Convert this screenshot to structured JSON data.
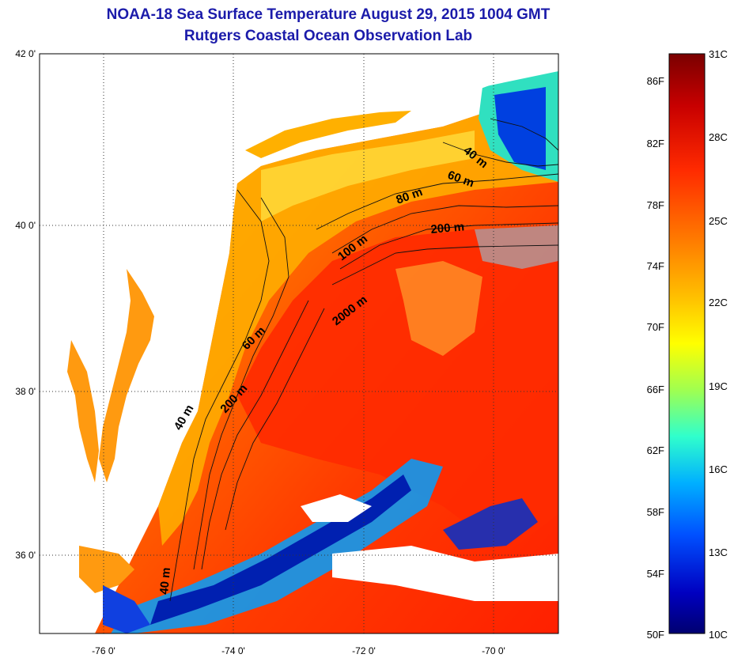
{
  "title": "NOAA-18 Sea Surface Temperature August 29, 2015 1004 GMT",
  "subtitle": "Rutgers Coastal Ocean Observation Lab",
  "map": {
    "lat_ticks": [
      "42 0'",
      "40 0'",
      "38 0'",
      "36 0'"
    ],
    "lon_ticks": [
      "-76 0'",
      "-74 0'",
      "-72 0'",
      "-70 0'"
    ],
    "contour_labels": [
      "40 m",
      "60 m",
      "80 m",
      "200 m",
      "100 m",
      "2000 m",
      "60 m",
      "200 m",
      "40 m",
      "40 m"
    ]
  },
  "colorbar": {
    "fahrenheit_labels": [
      "86F",
      "82F",
      "78F",
      "74F",
      "70F",
      "66F",
      "62F",
      "58F",
      "54F",
      "50F"
    ],
    "celsius_labels": [
      "31C",
      "28C",
      "25C",
      "22C",
      "19C",
      "16C",
      "13C",
      "10C"
    ],
    "colors": [
      "#7a0000",
      "#c80000",
      "#ff2a00",
      "#ff7a00",
      "#ffc000",
      "#ffff00",
      "#a0ff50",
      "#30ffcc",
      "#00b0ff",
      "#0050ff",
      "#0000c0",
      "#000070"
    ]
  }
}
